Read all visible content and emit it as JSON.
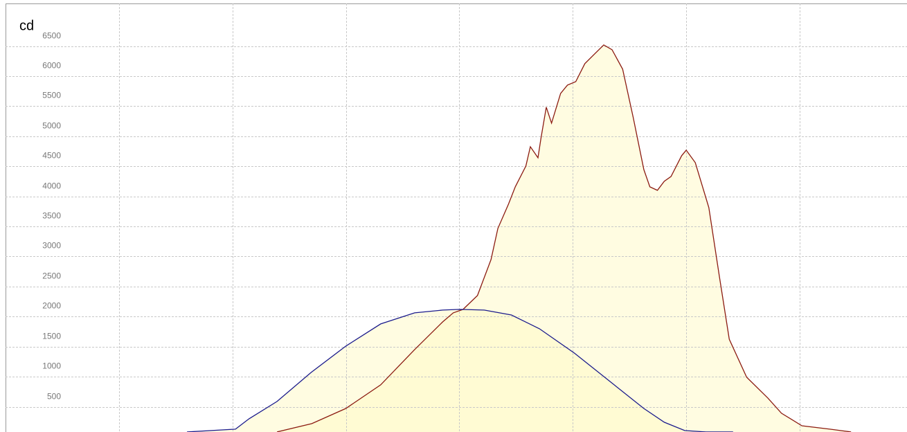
{
  "chart_data": {
    "type": "line",
    "y_label": "cd",
    "xlim": [
      -60,
      59.2
    ],
    "xticks": [
      -45,
      -30,
      -15,
      0,
      15,
      30,
      45
    ],
    "ylim": [
      80,
      7210
    ],
    "yticks": [
      500,
      1000,
      1500,
      2000,
      2500,
      3000,
      3500,
      4000,
      4500,
      5000,
      5500,
      6000,
      6500
    ],
    "grid": true,
    "series": [
      {
        "color": "#8b1a10",
        "fill": "rgba(255,249,200,0.55)",
        "x": [
          -24.1,
          -19.5,
          -15.0,
          -10.4,
          -5.9,
          -2.2,
          -0.8,
          0.5,
          2.4,
          4.2,
          5.1,
          6.5,
          7.4,
          8.8,
          9.4,
          10.4,
          10.8,
          11.5,
          12.2,
          13.4,
          14.3,
          15.4,
          16.6,
          17.9,
          19.1,
          20.2,
          21.6,
          23.0,
          24.4,
          25.2,
          26.2,
          27.1,
          28.0,
          29.4,
          30.0,
          31.2,
          33.0,
          34.4,
          35.7,
          38.0,
          40.8,
          42.6,
          45.3,
          49.0,
          51.8
        ],
        "values": [
          81,
          219,
          472,
          864,
          1452,
          1912,
          2062,
          2120,
          2350,
          2949,
          3468,
          3871,
          4159,
          4504,
          4827,
          4643,
          4965,
          5484,
          5219,
          5714,
          5852,
          5910,
          6209,
          6371,
          6520,
          6440,
          6117,
          5311,
          4447,
          4159,
          4101,
          4251,
          4332,
          4677,
          4769,
          4562,
          3813,
          2661,
          1624,
          991,
          645,
          392,
          184,
          127,
          81
        ]
      },
      {
        "color": "#1a1a8c",
        "fill": "rgba(255,249,200,0.55)",
        "x": [
          -36.0,
          -29.6,
          -27.8,
          -24.1,
          -19.6,
          -15.0,
          -10.4,
          -5.9,
          -2.2,
          0,
          3.3,
          6.9,
          10.6,
          15.2,
          19.8,
          24.4,
          27.1,
          29.8,
          32.6,
          36.2
        ],
        "values": [
          81,
          127,
          300,
          588,
          1071,
          1509,
          1878,
          2062,
          2108,
          2120,
          2108,
          2027,
          1797,
          1394,
          933,
          472,
          242,
          104,
          81,
          81
        ]
      }
    ]
  }
}
